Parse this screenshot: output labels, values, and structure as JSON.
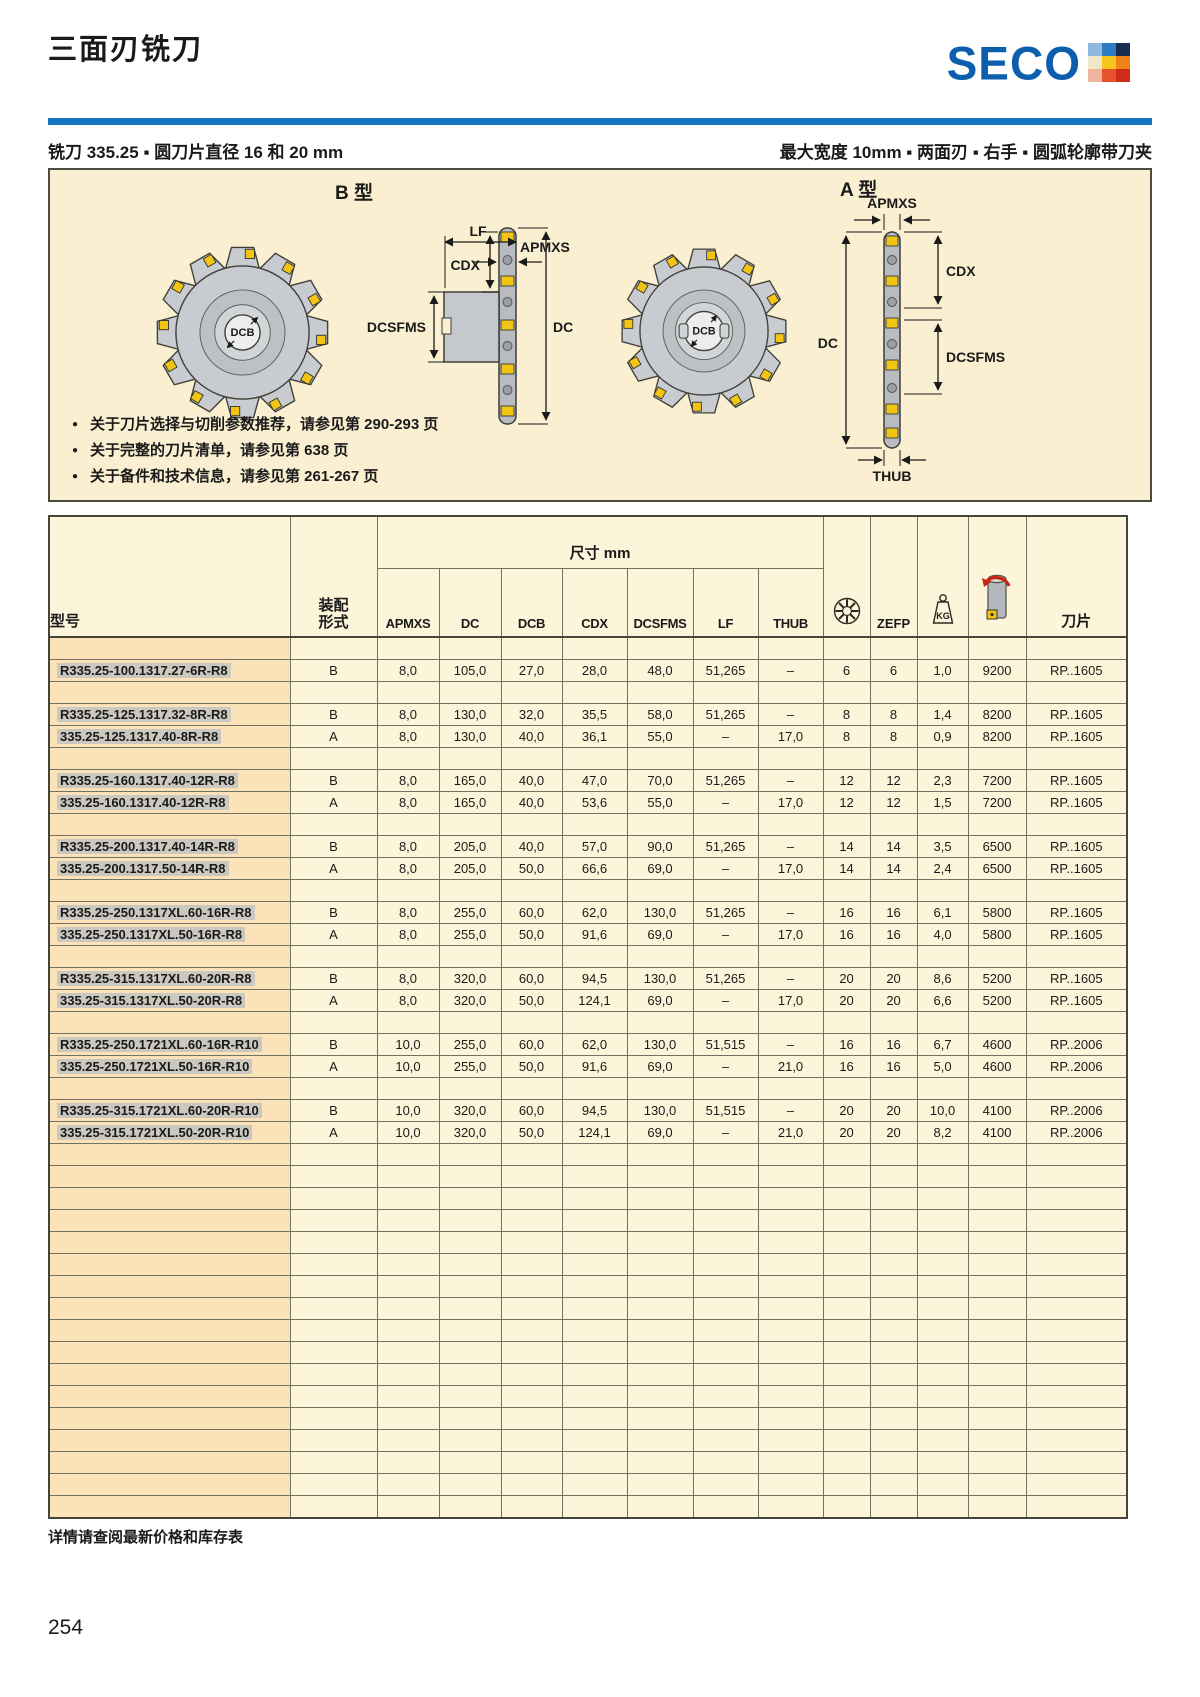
{
  "page": {
    "title": "三面刃铣刀",
    "footer_note": "详情请查阅最新价格和库存表",
    "page_number": "254"
  },
  "brand": {
    "logo_text": "SECO",
    "logo_blue": "#0d5fae",
    "mosaic_colors": [
      "#8fb8e0",
      "#2f7cc0",
      "#1b2d52",
      "#f0e6c8",
      "#f6c51c",
      "#f08218",
      "#eeb4a0",
      "#e4532a",
      "#cf2b18"
    ]
  },
  "subheader": {
    "left": "铣刀 335.25 ▪ 圆刀片直径 16 和 20 mm",
    "right": "最大宽度 10mm ▪ 两面刃 ▪ 右手 ▪ 圆弧轮廓带刀夹"
  },
  "diagram": {
    "type_b_label": "B 型",
    "type_a_label": "A 型",
    "labels": {
      "lf": "LF",
      "apmxs": "APMXS",
      "cdx": "CDX",
      "dcsfms": "DCSFMS",
      "dc": "DC",
      "dcb": "DCB",
      "thub": "THUB"
    },
    "notes": [
      "关于刀片选择与切削参数推荐，请参见第 290-293 页",
      "关于完整的刀片清单，请参见第 638 页",
      "关于备件和技术信息，请参见第 261-267 页"
    ]
  },
  "icons": {
    "teeth": "insert-teeth-icon",
    "weight": "kg-weight-icon",
    "rpm": "max-rpm-icon",
    "rotation_arrow": "rotation-arrow-icon",
    "bullet": "bullet-icon"
  },
  "table": {
    "header": {
      "model_label": "型号",
      "mount_label_line1": "装配",
      "mount_label_line2": "形式",
      "dim_span_label": "尺寸 mm",
      "dim_labels": [
        "APMXS",
        "DC",
        "DCB",
        "CDX",
        "DCSFMS",
        "LF",
        "THUB"
      ],
      "zefp_label": "ZEFP",
      "kg_label": "KG",
      "insert_label": "刀片"
    },
    "rows": [
      {
        "empty": true
      },
      {
        "model": "R335.25-100.1317.27-6R-R8",
        "mount": "B",
        "apmxs": "8,0",
        "dc": "105,0",
        "dcb": "27,0",
        "cdx": "28,0",
        "dcsfms": "48,0",
        "lf": "51,265",
        "thub": "–",
        "z": "6",
        "zefp": "6",
        "kg": "1,0",
        "rpm": "9200",
        "insert": "RP..1605"
      },
      {
        "empty": true
      },
      {
        "model": "R335.25-125.1317.32-8R-R8",
        "mount": "B",
        "apmxs": "8,0",
        "dc": "130,0",
        "dcb": "32,0",
        "cdx": "35,5",
        "dcsfms": "58,0",
        "lf": "51,265",
        "thub": "–",
        "z": "8",
        "zefp": "8",
        "kg": "1,4",
        "rpm": "8200",
        "insert": "RP..1605"
      },
      {
        "model": "335.25-125.1317.40-8R-R8",
        "mount": "A",
        "apmxs": "8,0",
        "dc": "130,0",
        "dcb": "40,0",
        "cdx": "36,1",
        "dcsfms": "55,0",
        "lf": "–",
        "thub": "17,0",
        "z": "8",
        "zefp": "8",
        "kg": "0,9",
        "rpm": "8200",
        "insert": "RP..1605"
      },
      {
        "empty": true
      },
      {
        "model": "R335.25-160.1317.40-12R-R8",
        "mount": "B",
        "apmxs": "8,0",
        "dc": "165,0",
        "dcb": "40,0",
        "cdx": "47,0",
        "dcsfms": "70,0",
        "lf": "51,265",
        "thub": "–",
        "z": "12",
        "zefp": "12",
        "kg": "2,3",
        "rpm": "7200",
        "insert": "RP..1605"
      },
      {
        "model": "335.25-160.1317.40-12R-R8",
        "mount": "A",
        "apmxs": "8,0",
        "dc": "165,0",
        "dcb": "40,0",
        "cdx": "53,6",
        "dcsfms": "55,0",
        "lf": "–",
        "thub": "17,0",
        "z": "12",
        "zefp": "12",
        "kg": "1,5",
        "rpm": "7200",
        "insert": "RP..1605"
      },
      {
        "empty": true
      },
      {
        "model": "R335.25-200.1317.40-14R-R8",
        "mount": "B",
        "apmxs": "8,0",
        "dc": "205,0",
        "dcb": "40,0",
        "cdx": "57,0",
        "dcsfms": "90,0",
        "lf": "51,265",
        "thub": "–",
        "z": "14",
        "zefp": "14",
        "kg": "3,5",
        "rpm": "6500",
        "insert": "RP..1605"
      },
      {
        "model": "335.25-200.1317.50-14R-R8",
        "mount": "A",
        "apmxs": "8,0",
        "dc": "205,0",
        "dcb": "50,0",
        "cdx": "66,6",
        "dcsfms": "69,0",
        "lf": "–",
        "thub": "17,0",
        "z": "14",
        "zefp": "14",
        "kg": "2,4",
        "rpm": "6500",
        "insert": "RP..1605"
      },
      {
        "empty": true
      },
      {
        "model": "R335.25-250.1317XL.60-16R-R8",
        "mount": "B",
        "apmxs": "8,0",
        "dc": "255,0",
        "dcb": "60,0",
        "cdx": "62,0",
        "dcsfms": "130,0",
        "lf": "51,265",
        "thub": "–",
        "z": "16",
        "zefp": "16",
        "kg": "6,1",
        "rpm": "5800",
        "insert": "RP..1605"
      },
      {
        "model": "335.25-250.1317XL.50-16R-R8",
        "mount": "A",
        "apmxs": "8,0",
        "dc": "255,0",
        "dcb": "50,0",
        "cdx": "91,6",
        "dcsfms": "69,0",
        "lf": "–",
        "thub": "17,0",
        "z": "16",
        "zefp": "16",
        "kg": "4,0",
        "rpm": "5800",
        "insert": "RP..1605"
      },
      {
        "empty": true
      },
      {
        "model": "R335.25-315.1317XL.60-20R-R8",
        "mount": "B",
        "apmxs": "8,0",
        "dc": "320,0",
        "dcb": "60,0",
        "cdx": "94,5",
        "dcsfms": "130,0",
        "lf": "51,265",
        "thub": "–",
        "z": "20",
        "zefp": "20",
        "kg": "8,6",
        "rpm": "5200",
        "insert": "RP..1605"
      },
      {
        "model": "335.25-315.1317XL.50-20R-R8",
        "mount": "A",
        "apmxs": "8,0",
        "dc": "320,0",
        "dcb": "50,0",
        "cdx": "124,1",
        "dcsfms": "69,0",
        "lf": "–",
        "thub": "17,0",
        "z": "20",
        "zefp": "20",
        "kg": "6,6",
        "rpm": "5200",
        "insert": "RP..1605"
      },
      {
        "empty": true
      },
      {
        "model": "R335.25-250.1721XL.60-16R-R10",
        "mount": "B",
        "apmxs": "10,0",
        "dc": "255,0",
        "dcb": "60,0",
        "cdx": "62,0",
        "dcsfms": "130,0",
        "lf": "51,515",
        "thub": "–",
        "z": "16",
        "zefp": "16",
        "kg": "6,7",
        "rpm": "4600",
        "insert": "RP..2006"
      },
      {
        "model": "335.25-250.1721XL.50-16R-R10",
        "mount": "A",
        "apmxs": "10,0",
        "dc": "255,0",
        "dcb": "50,0",
        "cdx": "91,6",
        "dcsfms": "69,0",
        "lf": "–",
        "thub": "21,0",
        "z": "16",
        "zefp": "16",
        "kg": "5,0",
        "rpm": "4600",
        "insert": "RP..2006"
      },
      {
        "empty": true
      },
      {
        "model": "R335.25-315.1721XL.60-20R-R10",
        "mount": "B",
        "apmxs": "10,0",
        "dc": "320,0",
        "dcb": "60,0",
        "cdx": "94,5",
        "dcsfms": "130,0",
        "lf": "51,515",
        "thub": "–",
        "z": "20",
        "zefp": "20",
        "kg": "10,0",
        "rpm": "4100",
        "insert": "RP..2006"
      },
      {
        "model": "335.25-315.1721XL.50-20R-R10",
        "mount": "A",
        "apmxs": "10,0",
        "dc": "320,0",
        "dcb": "50,0",
        "cdx": "124,1",
        "dcsfms": "69,0",
        "lf": "–",
        "thub": "21,0",
        "z": "20",
        "zefp": "20",
        "kg": "8,2",
        "rpm": "4100",
        "insert": "RP..2006"
      }
    ],
    "trailing_empty_rows": 17
  }
}
